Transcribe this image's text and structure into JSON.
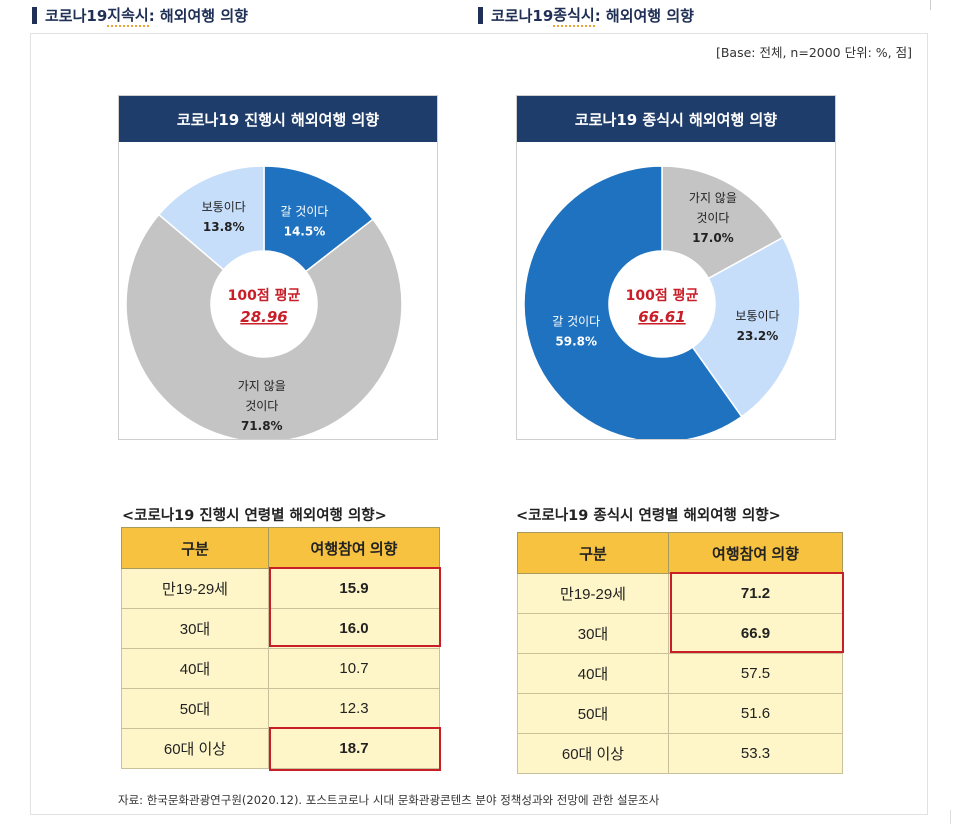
{
  "headings": {
    "left": {
      "pre": "코로나19 ",
      "underlined": "지속시",
      "post": " : 해외여행 의향"
    },
    "right": {
      "pre": "코로나19 ",
      "underlined": "종식시",
      "post": " : 해외여행 의향"
    }
  },
  "base_note": "[Base: 전체, n=2000 단위: %, 점]",
  "source": "자료: 한국문화관광연구원(2020.12). 포스트코로나 시대 문화관광콘텐츠 분야 정책성과와 전망에 관한 설문조사",
  "colors": {
    "navy": "#1f3d6b",
    "blue": "#1f72bf",
    "light_blue": "#c6defa",
    "gray": "#c4c4c4",
    "red": "#c81e28",
    "header_yellow": "#f6c23f",
    "cell_yellow": "#fef6c9"
  },
  "chart_data": [
    {
      "type": "pie",
      "title": "코로나19 진행시 해외여행 의향",
      "center_label": "100점 평균",
      "center_value": "28.96",
      "slices": [
        {
          "label_lines": [
            "갈 것이다"
          ],
          "pct": "14.5%",
          "value": 14.5,
          "color": "#1f72bf",
          "text_color": "#ffffff"
        },
        {
          "label_lines": [
            "가지 않을",
            "것이다"
          ],
          "pct": "71.8%",
          "value": 71.8,
          "color": "#c4c4c4",
          "text_color": "#222222"
        },
        {
          "label_lines": [
            "보통이다"
          ],
          "pct": "13.8%",
          "value": 13.8,
          "color": "#c6defa",
          "text_color": "#222222"
        }
      ]
    },
    {
      "type": "pie",
      "title": "코로나19 종식시 해외여행 의향",
      "center_label": "100점 평균",
      "center_value": "66.61",
      "slices": [
        {
          "label_lines": [
            "가지 않을",
            "것이다"
          ],
          "pct": "17.0%",
          "value": 17.0,
          "color": "#c4c4c4",
          "text_color": "#222222"
        },
        {
          "label_lines": [
            "보통이다"
          ],
          "pct": "23.2%",
          "value": 23.2,
          "color": "#c6defa",
          "text_color": "#222222"
        },
        {
          "label_lines": [
            "갈 것이다"
          ],
          "pct": "59.8%",
          "value": 59.8,
          "color": "#1f72bf",
          "text_color": "#ffffff"
        }
      ]
    },
    {
      "type": "table",
      "title": "<코로나19 진행시 연령별 해외여행 의향>",
      "columns": [
        "구분",
        "여행참여 의향"
      ],
      "rows": [
        {
          "group": "만19-29세",
          "value": "15.9",
          "highlight": true
        },
        {
          "group": "30대",
          "value": "16.0",
          "highlight": true
        },
        {
          "group": "40대",
          "value": "10.7",
          "highlight": false
        },
        {
          "group": "50대",
          "value": "12.3",
          "highlight": false
        },
        {
          "group": "60대 이상",
          "value": "18.7",
          "highlight": true
        }
      ]
    },
    {
      "type": "table",
      "title": "<코로나19 종식시 연령별 해외여행 의향>",
      "columns": [
        "구분",
        "여행참여 의향"
      ],
      "rows": [
        {
          "group": "만19-29세",
          "value": "71.2",
          "highlight": true
        },
        {
          "group": "30대",
          "value": "66.9",
          "highlight": true
        },
        {
          "group": "40대",
          "value": "57.5",
          "highlight": false
        },
        {
          "group": "50대",
          "value": "51.6",
          "highlight": false
        },
        {
          "group": "60대 이상",
          "value": "53.3",
          "highlight": false
        }
      ]
    }
  ]
}
